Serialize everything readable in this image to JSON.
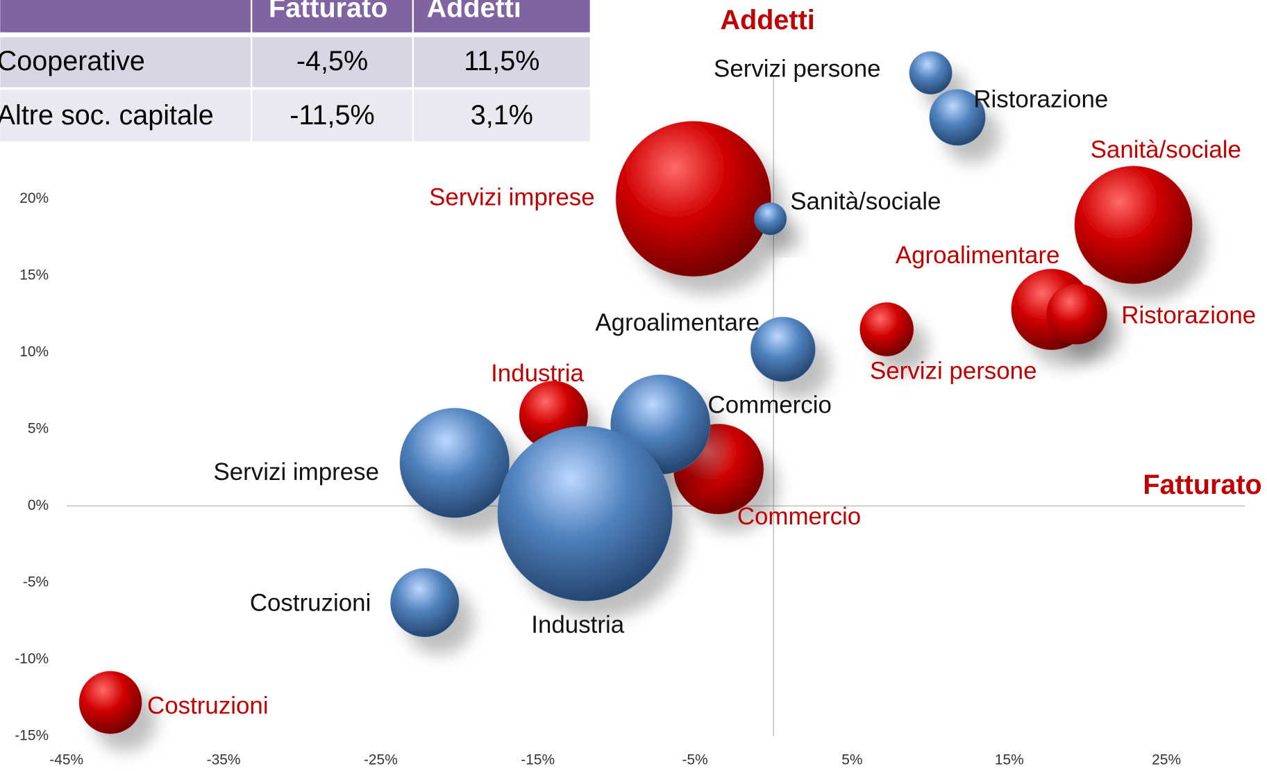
{
  "table": {
    "columns": [
      "Fatturato",
      "Addetti"
    ],
    "rows": [
      [
        "Cooperative",
        "-4,5%",
        "11,5%"
      ],
      [
        "Altre soc. capitale",
        "-11,5%",
        "3,1%"
      ]
    ]
  },
  "chart_data": {
    "type": "bubble",
    "xlabel": "Fatturato",
    "ylabel": "Addetti",
    "xlim": [
      -45,
      30
    ],
    "ylim": [
      -15,
      32
    ],
    "xticks": [
      {
        "value": -45,
        "label": "-45%"
      },
      {
        "value": -35,
        "label": "-35%"
      },
      {
        "value": -25,
        "label": "-25%"
      },
      {
        "value": -15,
        "label": "-15%"
      },
      {
        "value": -5,
        "label": "-5%"
      },
      {
        "value": 5,
        "label": "5%"
      },
      {
        "value": 15,
        "label": "15%"
      },
      {
        "value": 25,
        "label": "25%"
      }
    ],
    "yticks": [
      {
        "value": -15,
        "label": "-15%"
      },
      {
        "value": -10,
        "label": "-10%"
      },
      {
        "value": -5,
        "label": "-5%"
      },
      {
        "value": 0,
        "label": "0%"
      },
      {
        "value": 5,
        "label": "5%"
      },
      {
        "value": 10,
        "label": "10%"
      },
      {
        "value": 15,
        "label": "15%"
      },
      {
        "value": 20,
        "label": "20%"
      }
    ],
    "series": [
      {
        "name": "Altre soc. capitale",
        "color": "#c00000",
        "labels": [
          "Servizi imprese",
          "Sanità/sociale",
          "Agroalimentare",
          "Ristorazione",
          "Servizi persone",
          "Industria",
          "Commercio",
          "Costruzioni"
        ],
        "x": [
          -5.1,
          22.9,
          17.7,
          19.3,
          7.2,
          -14.0,
          -3.5,
          -42.2
        ],
        "values": [
          20.0,
          18.3,
          12.8,
          12.5,
          11.5,
          5.9,
          2.4,
          -12.8
        ],
        "sizes": [
          92,
          53,
          25,
          14,
          11,
          18,
          31,
          15
        ]
      },
      {
        "name": "Cooperative",
        "color": "#4f81bd",
        "labels": [
          "Servizi persone",
          "Ristorazione",
          "Sanità/sociale",
          "Agroalimentare",
          "Commercio",
          "Servizi imprese",
          "Industria",
          "Costruzioni"
        ],
        "x": [
          10.0,
          11.7,
          -0.2,
          0.6,
          -7.2,
          -20.3,
          -12.0,
          -22.2
        ],
        "values": [
          28.2,
          25.3,
          18.7,
          10.2,
          5.3,
          2.8,
          -0.5,
          -6.3
        ],
        "sizes": [
          7,
          12,
          4,
          16,
          38,
          46,
          117,
          18
        ]
      }
    ]
  }
}
